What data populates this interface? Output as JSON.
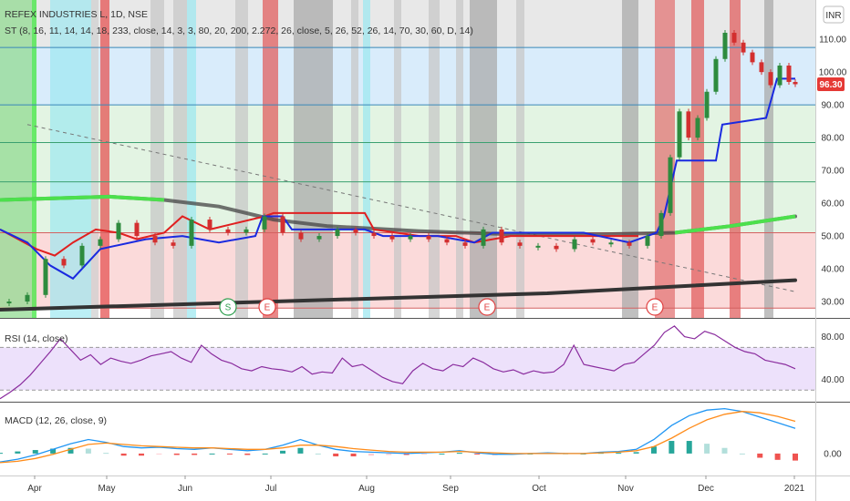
{
  "header": {
    "symbol": "REFEX INDUSTRIES L, 1D, NSE",
    "indicator": "ST (8, 16, 11, 14, 14, 18, 233, close, 14, 3, 3, 80, 20, 200, 2.272, 26, close, 5, 26, 52, 26, 14, 70, 30, 60, D, 14)",
    "currency": "INR"
  },
  "price_badge": {
    "label": "96.30",
    "color": "#e53935"
  },
  "chart_data": [
    {
      "type": "line",
      "panel": "price",
      "ylim": [
        25,
        122
      ],
      "y_ticks": [
        "30.00",
        "40.00",
        "50.00",
        "60.00",
        "70.00",
        "80.00",
        "90.00",
        "100.00",
        "110.00"
      ],
      "y_tick_values": [
        30,
        40,
        50,
        60,
        70,
        80,
        90,
        100,
        110
      ],
      "x_ticks": [
        "Apr",
        "May",
        "Jun",
        "Jul",
        "Aug",
        "Sep",
        "Oct",
        "Nov",
        "Dec",
        "2021"
      ],
      "horizontal_levels": [
        107.5,
        90,
        78.5,
        66.5,
        51,
        28
      ],
      "zones": [
        {
          "from": 107.5,
          "to": 122,
          "color": "#e8e8e8"
        },
        {
          "from": 90,
          "to": 107.5,
          "color": "#d9ecfb"
        },
        {
          "from": 51,
          "to": 90,
          "color": "#e3f4e3"
        },
        {
          "from": 28,
          "to": 51,
          "color": "#fbdada"
        }
      ],
      "event_markers": [
        "S",
        "E",
        "E",
        "E"
      ],
      "supertrend": [
        {
          "d": 0,
          "v": 52
        },
        {
          "d": 30,
          "v": 48
        },
        {
          "d": 55,
          "v": 41
        },
        {
          "d": 80,
          "v": 37
        },
        {
          "d": 110,
          "v": 46
        },
        {
          "d": 160,
          "v": 49
        },
        {
          "d": 200,
          "v": 50
        },
        {
          "d": 240,
          "v": 48
        },
        {
          "d": 280,
          "v": 50
        },
        {
          "d": 288,
          "v": 56
        },
        {
          "d": 310,
          "v": 56
        },
        {
          "d": 320,
          "v": 52
        },
        {
          "d": 400,
          "v": 52
        },
        {
          "d": 420,
          "v": 50
        },
        {
          "d": 480,
          "v": 50
        },
        {
          "d": 520,
          "v": 48
        },
        {
          "d": 540,
          "v": 51
        },
        {
          "d": 640,
          "v": 51
        },
        {
          "d": 690,
          "v": 48
        },
        {
          "d": 720,
          "v": 51
        },
        {
          "d": 728,
          "v": 56
        },
        {
          "d": 742,
          "v": 73
        },
        {
          "d": 785,
          "v": 73
        },
        {
          "d": 792,
          "v": 84
        },
        {
          "d": 840,
          "v": 86
        },
        {
          "d": 852,
          "v": 98
        },
        {
          "d": 872,
          "v": 98
        }
      ],
      "red_trail": [
        {
          "d": 0,
          "v": 52
        },
        {
          "d": 20,
          "v": 49
        },
        {
          "d": 40,
          "v": 46
        },
        {
          "d": 60,
          "v": 44
        },
        {
          "d": 80,
          "v": 48
        },
        {
          "d": 105,
          "v": 52
        },
        {
          "d": 130,
          "v": 51
        },
        {
          "d": 150,
          "v": 49
        },
        {
          "d": 180,
          "v": 51
        },
        {
          "d": 200,
          "v": 56
        },
        {
          "d": 230,
          "v": 52
        },
        {
          "d": 290,
          "v": 56
        },
        {
          "d": 300,
          "v": 57
        },
        {
          "d": 400,
          "v": 57
        },
        {
          "d": 410,
          "v": 52
        },
        {
          "d": 460,
          "v": 50
        },
        {
          "d": 500,
          "v": 50
        },
        {
          "d": 520,
          "v": 48
        },
        {
          "d": 560,
          "v": 50
        },
        {
          "d": 700,
          "v": 50
        }
      ],
      "slow_ma": [
        {
          "d": 0,
          "v": 61
        },
        {
          "d": 120,
          "v": 62
        },
        {
          "d": 180,
          "v": 61
        },
        {
          "d": 240,
          "v": 59
        },
        {
          "d": 300,
          "v": 55
        },
        {
          "d": 360,
          "v": 53
        },
        {
          "d": 460,
          "v": 51.5
        },
        {
          "d": 560,
          "v": 50.5
        },
        {
          "d": 660,
          "v": 50.5
        },
        {
          "d": 740,
          "v": 51
        },
        {
          "d": 800,
          "v": 53
        },
        {
          "d": 872,
          "v": 56
        }
      ],
      "long_ma": [
        {
          "d": 0,
          "v": 27.5
        },
        {
          "d": 300,
          "v": 30
        },
        {
          "d": 600,
          "v": 32.5
        },
        {
          "d": 872,
          "v": 36.5
        }
      ],
      "closes": [
        {
          "d": 10,
          "v": 30
        },
        {
          "d": 30,
          "v": 32
        },
        {
          "d": 50,
          "v": 43
        },
        {
          "d": 70,
          "v": 41
        },
        {
          "d": 90,
          "v": 47
        },
        {
          "d": 110,
          "v": 49
        },
        {
          "d": 130,
          "v": 54
        },
        {
          "d": 150,
          "v": 50
        },
        {
          "d": 170,
          "v": 48
        },
        {
          "d": 190,
          "v": 47
        },
        {
          "d": 210,
          "v": 55
        },
        {
          "d": 230,
          "v": 52
        },
        {
          "d": 250,
          "v": 51
        },
        {
          "d": 270,
          "v": 52
        },
        {
          "d": 290,
          "v": 56
        },
        {
          "d": 310,
          "v": 51
        },
        {
          "d": 330,
          "v": 49
        },
        {
          "d": 350,
          "v": 50
        },
        {
          "d": 370,
          "v": 52
        },
        {
          "d": 390,
          "v": 51
        },
        {
          "d": 410,
          "v": 50
        },
        {
          "d": 430,
          "v": 49
        },
        {
          "d": 450,
          "v": 50
        },
        {
          "d": 470,
          "v": 49
        },
        {
          "d": 490,
          "v": 48
        },
        {
          "d": 510,
          "v": 47
        },
        {
          "d": 530,
          "v": 52
        },
        {
          "d": 550,
          "v": 48
        },
        {
          "d": 570,
          "v": 47
        },
        {
          "d": 590,
          "v": 47
        },
        {
          "d": 610,
          "v": 46
        },
        {
          "d": 630,
          "v": 49
        },
        {
          "d": 650,
          "v": 48
        },
        {
          "d": 670,
          "v": 48
        },
        {
          "d": 690,
          "v": 47
        },
        {
          "d": 710,
          "v": 50
        },
        {
          "d": 725,
          "v": 57
        },
        {
          "d": 735,
          "v": 74
        },
        {
          "d": 745,
          "v": 88
        },
        {
          "d": 755,
          "v": 80
        },
        {
          "d": 765,
          "v": 86
        },
        {
          "d": 775,
          "v": 94
        },
        {
          "d": 785,
          "v": 104
        },
        {
          "d": 795,
          "v": 112
        },
        {
          "d": 805,
          "v": 109
        },
        {
          "d": 815,
          "v": 106
        },
        {
          "d": 825,
          "v": 103
        },
        {
          "d": 835,
          "v": 100
        },
        {
          "d": 845,
          "v": 96
        },
        {
          "d": 855,
          "v": 102
        },
        {
          "d": 865,
          "v": 97
        },
        {
          "d": 872,
          "v": 96.3
        }
      ]
    },
    {
      "type": "line",
      "panel": "rsi",
      "title": "RSI (14, close)",
      "ylim": [
        20,
        95
      ],
      "y_ticks": [
        "80.00",
        "40.00"
      ],
      "y_tick_values": [
        80,
        40
      ],
      "band": [
        30,
        70
      ],
      "values": [
        22,
        28,
        35,
        44,
        55,
        66,
        78,
        68,
        58,
        63,
        54,
        60,
        57,
        55,
        58,
        62,
        64,
        66,
        60,
        56,
        72,
        64,
        58,
        55,
        50,
        48,
        52,
        50,
        49,
        47,
        52,
        45,
        47,
        46,
        60,
        52,
        54,
        48,
        42,
        38,
        36,
        48,
        55,
        50,
        48,
        54,
        52,
        60,
        56,
        50,
        47,
        49,
        45,
        48,
        46,
        47,
        54,
        72,
        54,
        52,
        50,
        48,
        54,
        56,
        64,
        72,
        84,
        90,
        80,
        78,
        85,
        82,
        76,
        70,
        66,
        64,
        58,
        56,
        54,
        50
      ]
    },
    {
      "type": "bar",
      "panel": "macd",
      "title": "MACD (12, 26, close, 9)",
      "ylim": [
        -3,
        7
      ],
      "y_ticks": [
        "0.00"
      ],
      "y_tick_values": [
        0
      ],
      "macd_line": [
        -1.2,
        -0.8,
        -0.2,
        0.6,
        1.4,
        2.0,
        1.6,
        1.0,
        0.8,
        0.9,
        0.7,
        0.6,
        0.8,
        0.6,
        0.4,
        0.6,
        1.2,
        2.0,
        1.2,
        0.6,
        0.3,
        0.2,
        0.1,
        0.0,
        0.1,
        0.2,
        0.4,
        0.1,
        -0.1,
        -0.1,
        0.0,
        0.1,
        0.0,
        0.0,
        0.2,
        0.3,
        0.6,
        2.0,
        4.0,
        5.4,
        6.2,
        6.4,
        6.0,
        5.2,
        4.4,
        3.6
      ],
      "signal_line": [
        -1.3,
        -1.1,
        -0.7,
        -0.1,
        0.6,
        1.3,
        1.5,
        1.3,
        1.1,
        1.0,
        0.9,
        0.8,
        0.8,
        0.7,
        0.6,
        0.6,
        0.8,
        1.2,
        1.2,
        1.0,
        0.7,
        0.5,
        0.3,
        0.2,
        0.2,
        0.2,
        0.3,
        0.2,
        0.1,
        0.0,
        0.0,
        0.0,
        0.0,
        0.0,
        0.1,
        0.2,
        0.4,
        1.0,
        2.2,
        3.6,
        4.8,
        5.6,
        6.0,
        5.8,
        5.3,
        4.6
      ],
      "histogram": [
        0.1,
        0.3,
        0.5,
        0.7,
        0.8,
        0.7,
        0.1,
        -0.3,
        -0.3,
        -0.1,
        -0.2,
        -0.2,
        0.0,
        -0.1,
        -0.2,
        0.0,
        0.4,
        0.8,
        0.0,
        -0.4,
        -0.4,
        -0.3,
        -0.2,
        -0.2,
        -0.1,
        0.0,
        0.1,
        -0.1,
        -0.2,
        -0.1,
        0.0,
        0.1,
        0.0,
        0.0,
        0.1,
        0.1,
        0.2,
        1.0,
        1.8,
        1.8,
        1.4,
        0.8,
        0.0,
        -0.6,
        -0.9,
        -1.0
      ]
    }
  ]
}
